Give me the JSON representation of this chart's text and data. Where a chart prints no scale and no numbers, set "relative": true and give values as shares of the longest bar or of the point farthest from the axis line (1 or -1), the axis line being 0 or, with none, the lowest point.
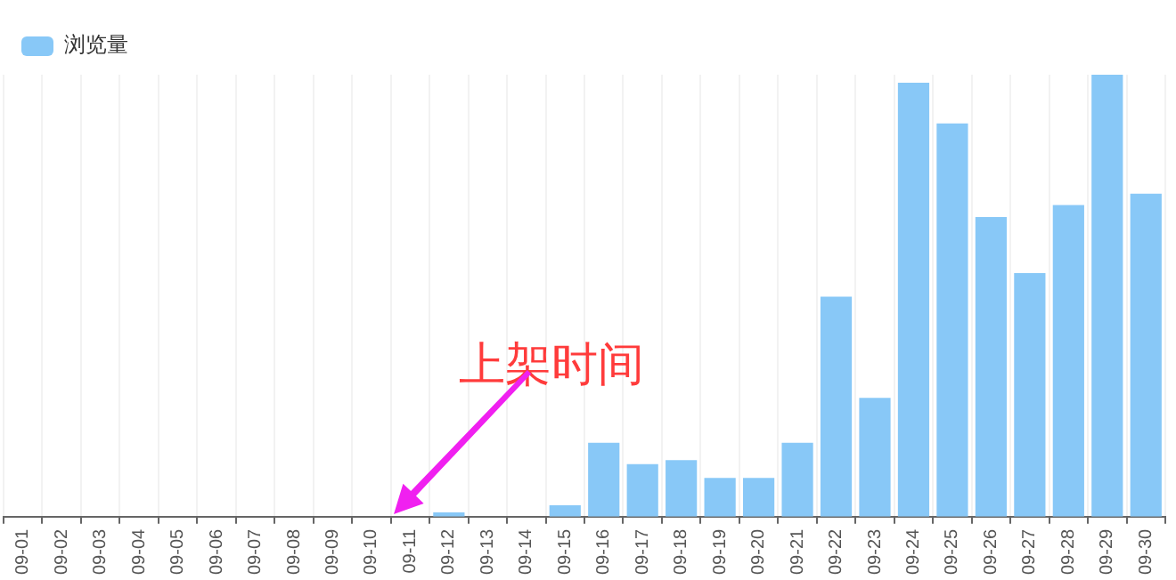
{
  "chart_data": {
    "type": "bar",
    "relative": true,
    "categories": [
      "09-01",
      "09-02",
      "09-03",
      "09-04",
      "09-05",
      "09-06",
      "09-07",
      "09-08",
      "09-09",
      "09-10",
      "09-11",
      "09-12",
      "09-13",
      "09-14",
      "09-15",
      "09-16",
      "09-17",
      "09-18",
      "09-19",
      "09-20",
      "09-21",
      "09-22",
      "09-23",
      "09-24",
      "09-25",
      "09-26",
      "09-27",
      "09-28",
      "09-29",
      "09-30"
    ],
    "series": [
      {
        "name": "浏览量",
        "color": "#88c8f7",
        "values": [
          null,
          null,
          null,
          null,
          null,
          null,
          null,
          null,
          null,
          null,
          null,
          0.01,
          null,
          null,
          0.026,
          0.167,
          0.119,
          0.128,
          0.088,
          0.088,
          0.167,
          0.498,
          0.269,
          0.982,
          0.89,
          0.678,
          0.551,
          0.705,
          1,
          0.731
        ]
      }
    ],
    "annotations": [
      "上架时间"
    ],
    "grid": "x",
    "legend": "top left"
  }
}
